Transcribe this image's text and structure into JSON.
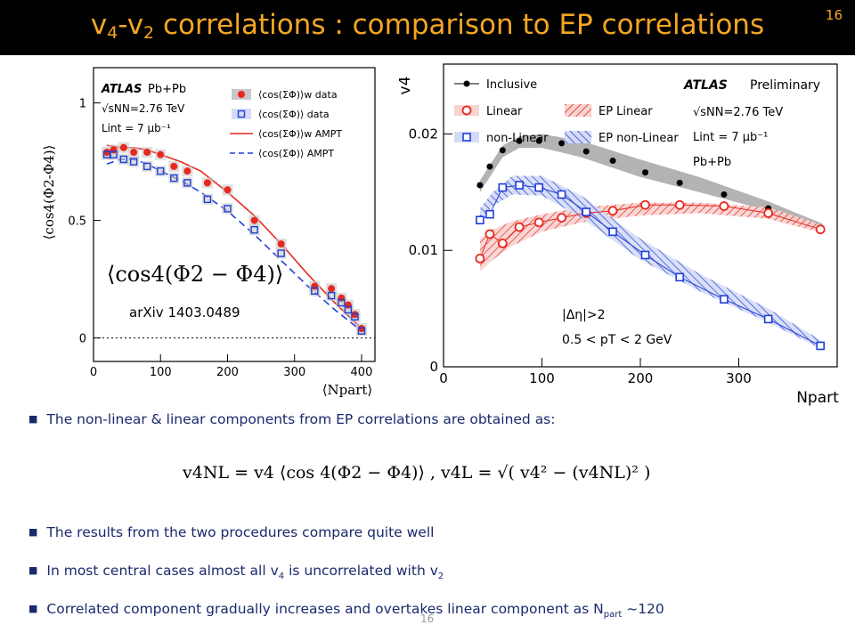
{
  "slide": {
    "title_main_a": "v",
    "title_sub_a": "4",
    "title_main_b": "-v",
    "title_sub_b": "2",
    "title_main_c": " correlations : comparison to EP correlations",
    "slide_number": "16",
    "footer_number": "16",
    "title_color": "#f5a623",
    "bullet_color": "#1a2a6c"
  },
  "bullets": {
    "b1": "The non-linear & linear components from EP correlations are obtained as:",
    "b2": "The results from the two procedures compare quite well",
    "b3_a": "In most central cases almost all v",
    "b3_s1": "4",
    "b3_b": " is uncorrelated with v",
    "b3_s2": "2",
    "b4_a": "Correlated component gradually increases and overtakes linear component as N",
    "b4_s": "part",
    "b4_b": " ~120"
  },
  "formula": {
    "text": "v4NL = v4 ⟨cos 4(Φ2 − Φ4)⟩ ,    v4L = √( v4² − (v4NL)² )"
  },
  "chart_data": [
    {
      "type": "scatter",
      "panel": "left",
      "ylabel": "⟨cos4(Φ2-Φ4)⟩",
      "xlabel": "⟨Npart⟩",
      "xlim": [
        0,
        420
      ],
      "ylim": [
        -0.1,
        1.15
      ],
      "x_ticks": [
        0,
        100,
        200,
        300,
        400
      ],
      "y_ticks": [
        0,
        0.5,
        1
      ],
      "atlas_label": "ATLAS",
      "system_label": "Pb+Pb",
      "energy_label": "√sNN=2.76 TeV",
      "lumi_label": "Lint = 7 μb⁻¹",
      "annotation_formula": "⟨cos4(Φ2 − Φ4)⟩",
      "annotation_ref": "arXiv 1403.0489",
      "legend": [
        "⟨cos(ΣΦ)⟩w  data",
        "⟨cos(ΣΦ)⟩  data",
        "⟨cos(ΣΦ)⟩w  AMPT",
        "⟨cos(ΣΦ)⟩  AMPT"
      ],
      "series": [
        {
          "name": "⟨cos(ΣΦ)⟩w data",
          "color": "#e8281e",
          "marker": "circle-filled",
          "x": [
            20,
            30,
            45,
            60,
            80,
            100,
            120,
            140,
            170,
            200,
            240,
            280,
            330,
            355,
            370,
            380,
            390,
            400
          ],
          "y": [
            0.79,
            0.8,
            0.81,
            0.79,
            0.79,
            0.78,
            0.73,
            0.71,
            0.66,
            0.63,
            0.5,
            0.4,
            0.22,
            0.21,
            0.17,
            0.14,
            0.1,
            0.04
          ]
        },
        {
          "name": "⟨cos(ΣΦ)⟩ data",
          "color": "#1f3fd6",
          "marker": "square-open",
          "x": [
            20,
            30,
            45,
            60,
            80,
            100,
            120,
            140,
            170,
            200,
            240,
            280,
            330,
            355,
            370,
            380,
            390,
            400
          ],
          "y": [
            0.78,
            0.78,
            0.76,
            0.75,
            0.73,
            0.71,
            0.68,
            0.66,
            0.59,
            0.55,
            0.46,
            0.36,
            0.2,
            0.18,
            0.15,
            0.12,
            0.09,
            0.03
          ]
        },
        {
          "name": "⟨cos(ΣΦ)⟩w AMPT",
          "color": "#e8281e",
          "line": "solid",
          "x": [
            20,
            40,
            60,
            80,
            100,
            130,
            160,
            200,
            240,
            280,
            320,
            360,
            400
          ],
          "y": [
            0.82,
            0.81,
            0.81,
            0.8,
            0.78,
            0.75,
            0.71,
            0.62,
            0.52,
            0.4,
            0.27,
            0.15,
            0.04
          ]
        },
        {
          "name": "⟨cos(ΣΦ)⟩ AMPT",
          "color": "#1f3fd6",
          "line": "dashed",
          "x": [
            20,
            40,
            60,
            80,
            100,
            130,
            160,
            200,
            240,
            280,
            320,
            360,
            400
          ],
          "y": [
            0.74,
            0.76,
            0.76,
            0.74,
            0.71,
            0.67,
            0.62,
            0.54,
            0.44,
            0.33,
            0.22,
            0.12,
            0.03
          ]
        }
      ]
    },
    {
      "type": "scatter",
      "panel": "right",
      "ylabel": "v4",
      "xlabel": "Npart",
      "xlim": [
        0,
        400
      ],
      "ylim": [
        0,
        0.026
      ],
      "x_ticks": [
        0,
        100,
        200,
        300
      ],
      "y_ticks": [
        0,
        0.01,
        0.02
      ],
      "y_tick_labels": [
        "0",
        "0.01",
        "0.02"
      ],
      "atlas_label": "ATLAS",
      "preliminary_label": "Preliminary",
      "energy_label": "√sNN=2.76 TeV",
      "lumi_label": "Lint = 7 μb⁻¹",
      "system_label": "Pb+Pb",
      "eta_label": "|Δη|>2",
      "pt_label": "0.5 < pT < 2 GeV",
      "legend": [
        "Inclusive",
        "Linear",
        "non-Linear",
        "EP Linear",
        "EP non-Linear"
      ],
      "series": [
        {
          "name": "Inclusive",
          "color": "#000000",
          "marker": "circle-filled",
          "x": [
            37,
            47,
            60,
            77,
            97,
            120,
            145,
            172,
            205,
            240,
            285,
            330,
            383
          ],
          "y": [
            0.0156,
            0.0172,
            0.0186,
            0.0194,
            0.0194,
            0.0192,
            0.0185,
            0.0177,
            0.0167,
            0.0158,
            0.0148,
            0.0136,
            0.0118
          ]
        },
        {
          "name": "Linear",
          "color": "#e8281e",
          "marker": "circle-open",
          "x": [
            37,
            47,
            60,
            77,
            97,
            120,
            145,
            172,
            205,
            240,
            285,
            330,
            383
          ],
          "y": [
            0.0093,
            0.0114,
            0.0106,
            0.012,
            0.0124,
            0.0128,
            0.0132,
            0.0134,
            0.0139,
            0.0139,
            0.0138,
            0.0132,
            0.0118
          ]
        },
        {
          "name": "non-Linear",
          "color": "#1f3fd6",
          "marker": "square-open",
          "x": [
            37,
            47,
            60,
            77,
            97,
            120,
            145,
            172,
            205,
            240,
            285,
            330,
            383
          ],
          "y": [
            0.0126,
            0.0131,
            0.0154,
            0.0156,
            0.0154,
            0.0148,
            0.0133,
            0.0116,
            0.0096,
            0.0077,
            0.0058,
            0.0041,
            0.0018
          ]
        }
      ],
      "bands": [
        {
          "name": "Inclusive band",
          "color": "#7f7f7f",
          "x": [
            37,
            60,
            77,
            100,
            140,
            200,
            260,
            330,
            385
          ],
          "low": [
            0.015,
            0.018,
            0.0188,
            0.0188,
            0.018,
            0.0163,
            0.015,
            0.0134,
            0.0117
          ],
          "high": [
            0.016,
            0.019,
            0.0198,
            0.02,
            0.0194,
            0.0178,
            0.0163,
            0.0142,
            0.0123
          ]
        },
        {
          "name": "EP Linear",
          "color": "#e8281e",
          "x": [
            37,
            50,
            70,
            100,
            140,
            200,
            260,
            330,
            385
          ],
          "low": [
            0.0082,
            0.0092,
            0.0104,
            0.0116,
            0.0124,
            0.013,
            0.0132,
            0.0127,
            0.0115
          ],
          "high": [
            0.011,
            0.0118,
            0.0125,
            0.0131,
            0.0137,
            0.0141,
            0.0141,
            0.0137,
            0.0122
          ]
        },
        {
          "name": "EP non-Linear",
          "color": "#1f3fd6",
          "x": [
            37,
            50,
            70,
            100,
            140,
            200,
            260,
            330,
            385
          ],
          "low": [
            0.0125,
            0.0138,
            0.0148,
            0.0147,
            0.0128,
            0.0092,
            0.0065,
            0.0038,
            0.0015
          ],
          "high": [
            0.0136,
            0.015,
            0.0164,
            0.0164,
            0.0147,
            0.011,
            0.008,
            0.005,
            0.0022
          ]
        }
      ]
    }
  ]
}
